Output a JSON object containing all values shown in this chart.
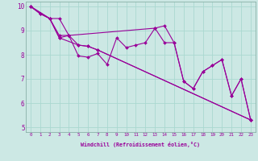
{
  "xlabel": "Windchill (Refroidissement éolien,°C)",
  "bg_color": "#cce8e4",
  "line_color": "#990099",
  "grid_color": "#aad8d0",
  "series": [
    [
      0,
      10.0,
      1,
      9.7,
      2,
      9.5,
      3,
      8.8,
      4,
      8.8,
      5,
      8.4,
      6,
      8.35,
      7,
      8.2,
      23,
      5.3
    ],
    [
      0,
      10.0,
      2,
      9.5,
      3,
      8.7,
      4,
      8.8,
      5,
      7.95,
      6,
      7.9,
      7,
      8.05,
      8,
      7.6,
      9,
      8.7,
      10,
      8.3,
      11,
      8.4,
      12,
      8.5,
      13,
      9.1,
      14,
      9.2,
      15,
      8.5,
      16,
      6.9,
      17,
      6.6,
      18,
      7.3,
      19,
      7.55,
      20,
      7.8,
      21,
      6.3,
      22,
      7.0,
      23,
      5.3
    ],
    [
      0,
      10.0,
      2,
      9.5,
      3,
      8.7,
      5,
      8.4,
      6,
      8.35,
      7,
      8.2,
      23,
      5.3
    ],
    [
      0,
      10.0,
      1,
      9.7,
      2,
      9.5,
      3,
      9.5,
      4,
      8.8,
      13,
      9.1,
      14,
      8.5,
      15,
      8.5,
      16,
      6.9,
      17,
      6.6,
      18,
      7.3,
      19,
      7.55,
      20,
      7.8,
      21,
      6.3,
      22,
      7.0,
      23,
      5.3
    ]
  ],
  "lines": [
    {
      "x": [
        0,
        1,
        2,
        3,
        4,
        5,
        6,
        7,
        23
      ],
      "y": [
        10.0,
        9.7,
        9.5,
        8.8,
        8.8,
        8.4,
        8.35,
        8.2,
        5.3
      ]
    },
    {
      "x": [
        0,
        2,
        3,
        4,
        5,
        6,
        7,
        8,
        9,
        10,
        11,
        12,
        13,
        14,
        15,
        16,
        17,
        18,
        19,
        20,
        21,
        22,
        23
      ],
      "y": [
        10.0,
        9.5,
        8.7,
        8.8,
        7.95,
        7.9,
        8.05,
        7.6,
        8.7,
        8.3,
        8.4,
        8.5,
        9.1,
        9.2,
        8.5,
        6.9,
        6.6,
        7.3,
        7.55,
        7.8,
        6.3,
        7.0,
        5.3
      ]
    },
    {
      "x": [
        0,
        2,
        3,
        5,
        6,
        7,
        23
      ],
      "y": [
        10.0,
        9.5,
        8.7,
        8.4,
        8.35,
        8.2,
        5.3
      ]
    },
    {
      "x": [
        0,
        1,
        2,
        3,
        4,
        13,
        14,
        15,
        16,
        17,
        18,
        19,
        20,
        21,
        22,
        23
      ],
      "y": [
        10.0,
        9.7,
        9.5,
        9.5,
        8.8,
        9.1,
        8.5,
        8.5,
        6.9,
        6.6,
        7.3,
        7.55,
        7.8,
        6.3,
        7.0,
        5.3
      ]
    }
  ],
  "xlim": [
    -0.5,
    23.5
  ],
  "ylim": [
    4.8,
    10.2
  ],
  "yticks": [
    5,
    6,
    7,
    8,
    9,
    10
  ],
  "xticks": [
    0,
    1,
    2,
    3,
    4,
    5,
    6,
    7,
    8,
    9,
    10,
    11,
    12,
    13,
    14,
    15,
    16,
    17,
    18,
    19,
    20,
    21,
    22,
    23
  ]
}
